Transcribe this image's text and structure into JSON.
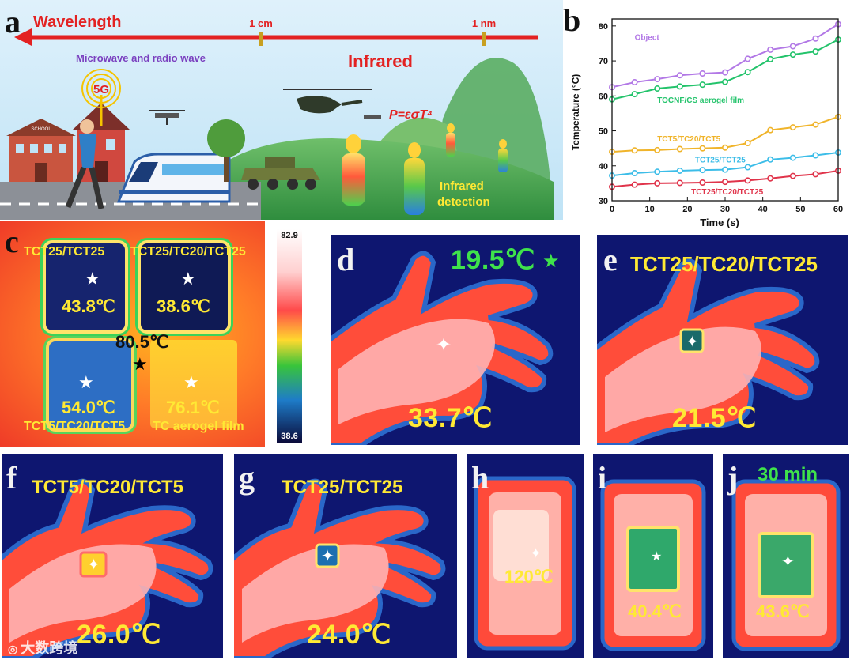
{
  "panel_labels": {
    "a": "a",
    "b": "b",
    "c": "c",
    "d": "d",
    "e": "e",
    "f": "f",
    "g": "g",
    "h": "h",
    "i": "i",
    "j": "j"
  },
  "panel_a": {
    "wavelength_label": "Wavelength",
    "tick_1cm": "1 cm",
    "tick_1nm": "1 nm",
    "microwave_label": "Microwave and radio wave",
    "infrared_label": "Infrared",
    "equation": "P=εσT⁴",
    "tower_label": "5G",
    "school_sign": "SCHOOL",
    "detection_label_1": "Infrared",
    "detection_label_2": "detection"
  },
  "panel_c": {
    "tl_label": "TCT25/TCT25",
    "tr_label": "TCT25/TC20/TCT25",
    "bl_label": "TCT5/TC20/TCT5",
    "br_label": "TC aerogel film",
    "tl_temp": "43.8℃",
    "tr_temp": "38.6℃",
    "bl_temp": "54.0℃",
    "br_temp": "76.1℃",
    "center_temp": "80.5℃",
    "scale_max": "82.9",
    "scale_min": "38.6"
  },
  "panel_d": {
    "env_temp": "19.5℃",
    "hand_temp": "33.7℃"
  },
  "panel_e": {
    "caption": "TCT25/TC20/TCT25",
    "temp": "21.5℃"
  },
  "panel_f": {
    "caption": "TCT5/TC20/TCT5",
    "temp": "26.0℃"
  },
  "panel_g": {
    "caption": "TCT25/TCT25",
    "temp": "24.0℃"
  },
  "panel_h": {
    "temp": "120℃"
  },
  "panel_i": {
    "temp": "40.4℃"
  },
  "panel_j": {
    "time": "30 min",
    "temp": "43.6℃"
  },
  "watermark": "大数跨境",
  "colors": {
    "arrow_red": "#e32222",
    "label_yellow": "#ffe934",
    "green_text": "#3fe24b",
    "purple_text": "#7a3fbf"
  },
  "chart_data": {
    "type": "line",
    "xlabel": "Time (s)",
    "ylabel": "Temperature (°C)",
    "xlim": [
      0,
      60
    ],
    "ylim": [
      30,
      82
    ],
    "xticks": [
      0,
      10,
      20,
      30,
      40,
      50,
      60
    ],
    "yticks": [
      30,
      40,
      50,
      60,
      70,
      80
    ],
    "grid": false,
    "x": [
      0,
      6,
      12,
      18,
      24,
      30,
      36,
      42,
      48,
      54,
      60
    ],
    "series": [
      {
        "name": "Object",
        "color": "#b278e6",
        "values": [
          62.5,
          63.9,
          64.8,
          65.9,
          66.4,
          66.7,
          70.6,
          73.2,
          74.2,
          76.4,
          80.5
        ],
        "label_at": [
          6,
          76
        ]
      },
      {
        "name": "TOCNF/CS aerogel film",
        "color": "#23c36b",
        "values": [
          59.0,
          60.5,
          62.1,
          62.7,
          63.2,
          64.0,
          66.8,
          70.5,
          71.8,
          72.7,
          76.1
        ],
        "label_at": [
          12,
          58
        ]
      },
      {
        "name": "TCT5/TC20/TCT5",
        "color": "#f0b42a",
        "values": [
          44.0,
          44.4,
          44.5,
          44.8,
          45.0,
          45.2,
          46.5,
          50.2,
          51.0,
          51.8,
          54.0
        ],
        "label_at": [
          12,
          47
        ]
      },
      {
        "name": "TCT25/TCT25",
        "color": "#3cbde8",
        "values": [
          37.2,
          37.9,
          38.3,
          38.6,
          38.8,
          38.9,
          39.6,
          41.8,
          42.3,
          43.0,
          43.8
        ],
        "label_at": [
          22,
          41
        ]
      },
      {
        "name": "TCT25/TC20/TCT25",
        "color": "#e0334a",
        "values": [
          34.0,
          34.6,
          35.0,
          35.1,
          35.2,
          35.4,
          35.8,
          36.4,
          37.1,
          37.6,
          38.6
        ],
        "label_at": [
          21,
          31.8
        ]
      }
    ]
  }
}
